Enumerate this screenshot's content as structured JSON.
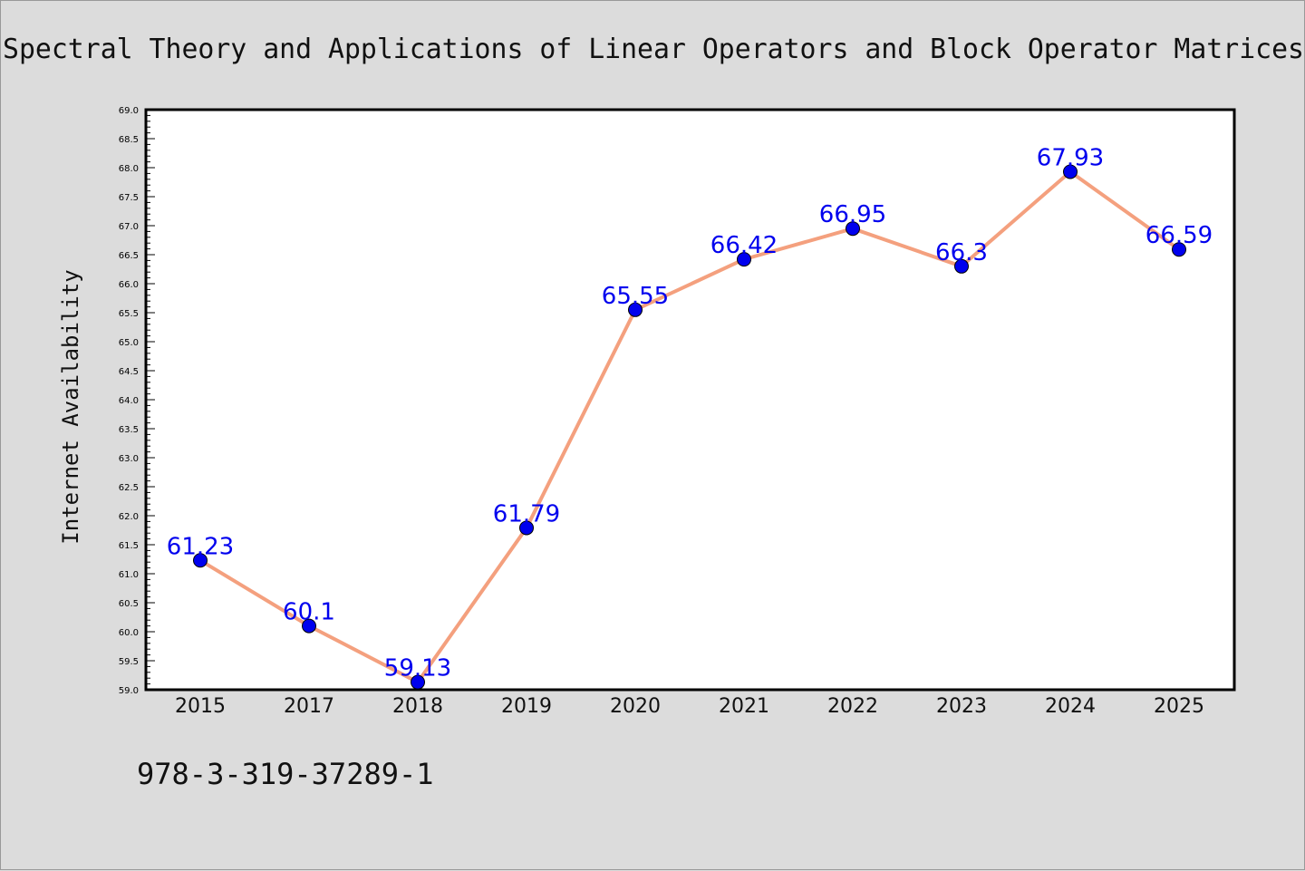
{
  "footer": {
    "isbn": "978-3-319-37289-1"
  },
  "chart_data": {
    "type": "line",
    "title": "Spectral Theory and Applications of Linear Operators and Block Operator Matrices",
    "xlabel": "",
    "ylabel": "Internet Availability",
    "categories": [
      "2015",
      "2017",
      "2018",
      "2019",
      "2020",
      "2021",
      "2022",
      "2023",
      "2024",
      "2025"
    ],
    "series": [
      {
        "values": [
          61.23,
          60.1,
          59.13,
          61.79,
          65.55,
          66.42,
          66.95,
          66.3,
          67.93,
          66.59
        ]
      }
    ],
    "data_labels": [
      "61.23",
      "60.1",
      "59.13",
      "61.79",
      "65.55",
      "66.42",
      "66.95",
      "66.3",
      "67.93",
      "66.59"
    ],
    "ylim": [
      59.0,
      69.0
    ],
    "yticks": [
      "59.0",
      "59.5",
      "60.0",
      "60.5",
      "61.0",
      "61.5",
      "62.0",
      "62.5",
      "63.0",
      "63.5",
      "64.0",
      "64.5",
      "65.0",
      "65.5",
      "66.0",
      "66.5",
      "67.0",
      "67.5",
      "68.0",
      "68.5",
      "69.0"
    ],
    "grid": false,
    "legend": "none",
    "colors": {
      "line": "#f4a07e",
      "marker": "#0000ee",
      "label": "#0000ee",
      "background": "#dcdcdc",
      "plot_background": "#ffffff"
    }
  }
}
